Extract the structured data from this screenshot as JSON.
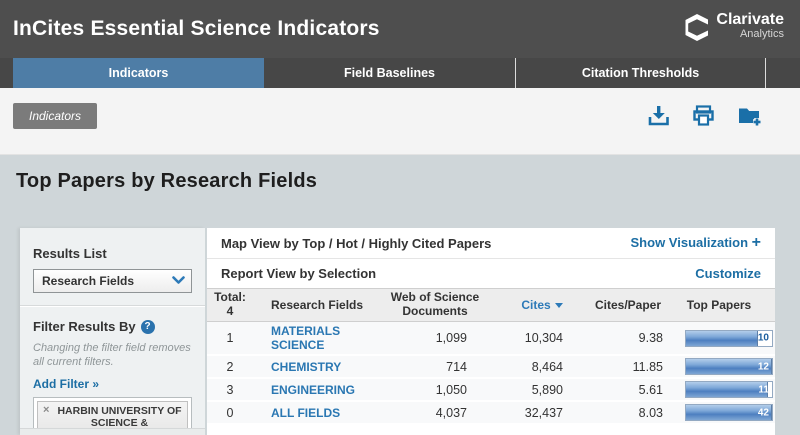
{
  "colors": {
    "accent_blue": "#1c6ea4",
    "active_tab": "#4e7da6",
    "header_bg": "#4e4e4e",
    "tabbar_bg": "#474747",
    "band_bg": "#cfd6d9",
    "panel_bg": "#eef1f2",
    "icon_blue": "#1a6fa8",
    "bar_fill_blue": "#4d7fc0"
  },
  "header": {
    "title": "InCites Essential Science Indicators",
    "brand": {
      "name": "Clarivate",
      "sub": "Analytics"
    }
  },
  "tabs": [
    {
      "label": "Indicators",
      "active": true
    },
    {
      "label": "Field Baselines",
      "active": false
    },
    {
      "label": "Citation Thresholds",
      "active": false
    }
  ],
  "breadcrumb": {
    "label": "Indicators"
  },
  "toolbar": {
    "icons": [
      "download-icon",
      "print-icon",
      "folder-add-icon"
    ]
  },
  "page_title": "Top Papers by Research Fields",
  "sidebar": {
    "results_list": {
      "label": "Results List",
      "selected": "Research Fields"
    },
    "filter": {
      "title": "Filter Results By",
      "help": "?",
      "hint": "Changing the filter field removes all current filters.",
      "add_filter": "Add Filter »",
      "chip": {
        "remove": "×",
        "label": "HARBIN UNIVERSITY OF SCIENCE & TECHNOLOGY"
      }
    }
  },
  "main": {
    "map_view": {
      "title": "Map View by Top / Hot / Highly Cited Papers",
      "action": "Show Visualization",
      "action_plus": "+"
    },
    "report_view": {
      "title": "Report View by Selection",
      "action": "Customize"
    },
    "table": {
      "total_label": "Total:",
      "total_value": "4",
      "columns": {
        "field": "Research Fields",
        "docs_line1": "Web of Science",
        "docs_line2": "Documents",
        "cites": "Cites",
        "cites_per_paper": "Cites/Paper",
        "top_papers": "Top Papers"
      },
      "sort_column": "Cites",
      "rows": [
        {
          "rank": "1",
          "field": "MATERIALS SCIENCE",
          "documents": "1,099",
          "cites": "10,304",
          "cites_per_paper": "9.38",
          "top_papers": "10",
          "bar_fill_pct": 84,
          "bar_label_outside": true
        },
        {
          "rank": "2",
          "field": "CHEMISTRY",
          "documents": "714",
          "cites": "8,464",
          "cites_per_paper": "11.85",
          "top_papers": "12",
          "bar_fill_pct": 100,
          "bar_label_outside": false
        },
        {
          "rank": "3",
          "field": "ENGINEERING",
          "documents": "1,050",
          "cites": "5,890",
          "cites_per_paper": "5.61",
          "top_papers": "11",
          "bar_fill_pct": 95,
          "bar_label_outside": false
        },
        {
          "rank": "0",
          "field": "ALL FIELDS",
          "documents": "4,037",
          "cites": "32,437",
          "cites_per_paper": "8.03",
          "top_papers": "42",
          "bar_fill_pct": 100,
          "bar_label_outside": false
        }
      ]
    }
  }
}
